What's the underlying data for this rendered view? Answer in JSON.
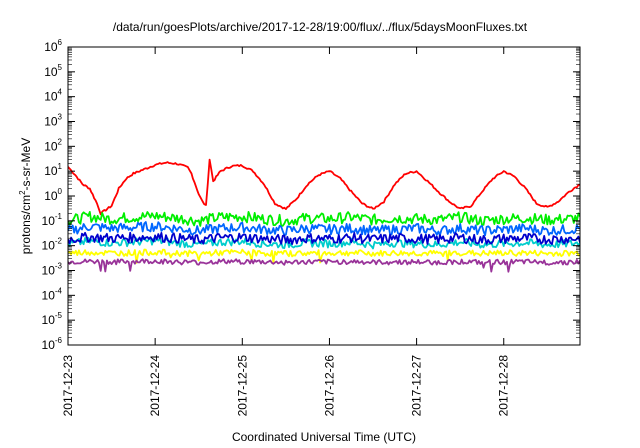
{
  "chart_data": {
    "type": "line",
    "title": "/data/run/goesPlots/archive/2017-12-28/19:00/flux/../flux/5daysMoonFluxes.txt",
    "xlabel": "Coordinated Universal Time (UTC)",
    "ylabel": "protons/cm²-s-sr-MeV",
    "ylabel_parts": {
      "base": "protons/cm",
      "sup": "2",
      "rest": "-s-sr-MeV"
    },
    "xlim": [
      "2017-12-23",
      "2017-12-28 21:00"
    ],
    "x_ticks": [
      "2017-12-23",
      "2017-12-24",
      "2017-12-25",
      "2017-12-26",
      "2017-12-27",
      "2017-12-28"
    ],
    "y_scale": "log",
    "ylim": [
      1e-06,
      1000000.0
    ],
    "y_ticks": [
      {
        "value": 1e-06,
        "base": "10",
        "exp": "-6"
      },
      {
        "value": 1e-05,
        "base": "10",
        "exp": "-5"
      },
      {
        "value": 0.0001,
        "base": "10",
        "exp": "-4"
      },
      {
        "value": 0.001,
        "base": "10",
        "exp": "-3"
      },
      {
        "value": 0.01,
        "base": "10",
        "exp": "-2"
      },
      {
        "value": 0.1,
        "base": "10",
        "exp": "-1"
      },
      {
        "value": 1,
        "base": "10",
        "exp": "0"
      },
      {
        "value": 10,
        "base": "10",
        "exp": "1"
      },
      {
        "value": 100,
        "base": "10",
        "exp": "2"
      },
      {
        "value": 1000,
        "base": "10",
        "exp": "3"
      },
      {
        "value": 10000,
        "base": "10",
        "exp": "4"
      },
      {
        "value": 100000,
        "base": "10",
        "exp": "5"
      },
      {
        "value": 1000000,
        "base": "10",
        "exp": "6"
      }
    ],
    "grid": false,
    "legend": "none",
    "series": [
      {
        "color": "#ff0000",
        "x": [
          "2017-12-23 00:00",
          "2017-12-23 02:00",
          "2017-12-23 04:00",
          "2017-12-23 06:00",
          "2017-12-23 08:00",
          "2017-12-23 09:00",
          "2017-12-23 10:00",
          "2017-12-23 12:00",
          "2017-12-23 14:00",
          "2017-12-23 16:00",
          "2017-12-23 18:00",
          "2017-12-23 21:00",
          "2017-12-24 00:00",
          "2017-12-24 03:00",
          "2017-12-24 06:00",
          "2017-12-24 09:00",
          "2017-12-24 10:00",
          "2017-12-24 12:00",
          "2017-12-24 13:00",
          "2017-12-24 14:00",
          "2017-12-24 15:00",
          "2017-12-24 16:00",
          "2017-12-24 18:00",
          "2017-12-24 21:00",
          "2017-12-25 00:00",
          "2017-12-25 03:00",
          "2017-12-25 06:00",
          "2017-12-25 09:00",
          "2017-12-25 12:00",
          "2017-12-25 15:00",
          "2017-12-25 18:00",
          "2017-12-25 21:00",
          "2017-12-26 00:00",
          "2017-12-26 03:00",
          "2017-12-26 06:00",
          "2017-12-26 09:00",
          "2017-12-26 12:00",
          "2017-12-26 15:00",
          "2017-12-26 18:00",
          "2017-12-26 21:00",
          "2017-12-27 00:00",
          "2017-12-27 03:00",
          "2017-12-27 06:00",
          "2017-12-27 09:00",
          "2017-12-27 12:00",
          "2017-12-27 15:00",
          "2017-12-27 18:00",
          "2017-12-27 21:00",
          "2017-12-28 00:00",
          "2017-12-28 03:00",
          "2017-12-28 06:00",
          "2017-12-28 09:00",
          "2017-12-28 12:00",
          "2017-12-28 15:00",
          "2017-12-28 18:00",
          "2017-12-28 21:00"
        ],
        "y": [
          15,
          7,
          3,
          2,
          0.5,
          0.2,
          0.25,
          0.4,
          2,
          5,
          8,
          12,
          18,
          22,
          20,
          14,
          8,
          1.2,
          0.6,
          0.4,
          30,
          4,
          10,
          16,
          17,
          10,
          3,
          0.5,
          0.3,
          0.8,
          3,
          7,
          10,
          5,
          1.5,
          0.5,
          0.3,
          0.6,
          3,
          8,
          10,
          4,
          1.5,
          0.6,
          0.3,
          0.4,
          1.5,
          5,
          10,
          6,
          2,
          0.5,
          0.35,
          0.6,
          1.5,
          3
        ]
      },
      {
        "color": "#00ee00",
        "x": [
          "2017-12-23 00:00",
          "2017-12-23 06:00",
          "2017-12-23 12:00",
          "2017-12-23 18:00",
          "2017-12-24 00:00",
          "2017-12-24 06:00",
          "2017-12-24 12:00",
          "2017-12-24 18:00",
          "2017-12-25 00:00",
          "2017-12-25 06:00",
          "2017-12-25 12:00",
          "2017-12-25 18:00",
          "2017-12-26 00:00",
          "2017-12-26 06:00",
          "2017-12-26 12:00",
          "2017-12-26 18:00",
          "2017-12-27 00:00",
          "2017-12-27 06:00",
          "2017-12-27 12:00",
          "2017-12-27 18:00",
          "2017-12-28 00:00",
          "2017-12-28 06:00",
          "2017-12-28 12:00",
          "2017-12-28 18:00",
          "2017-12-28 21:00"
        ],
        "y": [
          0.1,
          0.15,
          0.12,
          0.14,
          0.16,
          0.13,
          0.1,
          0.14,
          0.15,
          0.12,
          0.1,
          0.13,
          0.12,
          0.14,
          0.11,
          0.13,
          0.12,
          0.11,
          0.14,
          0.1,
          0.12,
          0.13,
          0.11,
          0.12,
          0.13
        ]
      },
      {
        "color": "#0066ff",
        "x": [
          "2017-12-23 00:00",
          "2017-12-23 06:00",
          "2017-12-23 12:00",
          "2017-12-23 18:00",
          "2017-12-24 00:00",
          "2017-12-24 06:00",
          "2017-12-24 12:00",
          "2017-12-24 18:00",
          "2017-12-25 00:00",
          "2017-12-25 06:00",
          "2017-12-25 12:00",
          "2017-12-25 18:00",
          "2017-12-26 00:00",
          "2017-12-26 06:00",
          "2017-12-26 12:00",
          "2017-12-26 18:00",
          "2017-12-27 00:00",
          "2017-12-27 06:00",
          "2017-12-27 12:00",
          "2017-12-27 18:00",
          "2017-12-28 00:00",
          "2017-12-28 06:00",
          "2017-12-28 12:00",
          "2017-12-28 18:00",
          "2017-12-28 21:00"
        ],
        "y": [
          0.04,
          0.06,
          0.05,
          0.055,
          0.06,
          0.05,
          0.04,
          0.05,
          0.055,
          0.045,
          0.04,
          0.05,
          0.045,
          0.05,
          0.04,
          0.045,
          0.05,
          0.04,
          0.05,
          0.04,
          0.045,
          0.05,
          0.04,
          0.045,
          0.05
        ]
      },
      {
        "color": "#00cccc",
        "x": [
          "2017-12-23 00:00",
          "2017-12-23 06:00",
          "2017-12-23 12:00",
          "2017-12-23 18:00",
          "2017-12-24 00:00",
          "2017-12-24 06:00",
          "2017-12-24 12:00",
          "2017-12-24 18:00",
          "2017-12-25 00:00",
          "2017-12-25 06:00",
          "2017-12-25 12:00",
          "2017-12-25 18:00",
          "2017-12-26 00:00",
          "2017-12-26 06:00",
          "2017-12-26 12:00",
          "2017-12-26 18:00",
          "2017-12-27 00:00",
          "2017-12-27 06:00",
          "2017-12-27 12:00",
          "2017-12-27 18:00",
          "2017-12-28 00:00",
          "2017-12-28 06:00",
          "2017-12-28 12:00",
          "2017-12-28 18:00",
          "2017-12-28 21:00"
        ],
        "y": [
          0.012,
          0.015,
          0.013,
          0.014,
          0.016,
          0.013,
          0.011,
          0.014,
          0.015,
          0.012,
          0.011,
          0.013,
          0.012,
          0.014,
          0.011,
          0.013,
          0.012,
          0.011,
          0.014,
          0.011,
          0.012,
          0.013,
          0.011,
          0.012,
          0.013
        ]
      },
      {
        "color": "#0000cc",
        "x": [
          "2017-12-23 00:00",
          "2017-12-23 06:00",
          "2017-12-23 12:00",
          "2017-12-23 18:00",
          "2017-12-24 00:00",
          "2017-12-24 06:00",
          "2017-12-24 12:00",
          "2017-12-24 18:00",
          "2017-12-25 00:00",
          "2017-12-25 06:00",
          "2017-12-25 12:00",
          "2017-12-25 18:00",
          "2017-12-26 00:00",
          "2017-12-26 06:00",
          "2017-12-26 12:00",
          "2017-12-26 18:00",
          "2017-12-27 00:00",
          "2017-12-27 06:00",
          "2017-12-27 12:00",
          "2017-12-27 18:00",
          "2017-12-28 00:00",
          "2017-12-28 06:00",
          "2017-12-28 12:00",
          "2017-12-28 18:00",
          "2017-12-28 21:00"
        ],
        "y": [
          0.018,
          0.022,
          0.02,
          0.021,
          0.023,
          0.02,
          0.017,
          0.021,
          0.022,
          0.019,
          0.017,
          0.02,
          0.019,
          0.021,
          0.018,
          0.02,
          0.019,
          0.018,
          0.021,
          0.017,
          0.019,
          0.02,
          0.018,
          0.019,
          0.02
        ]
      },
      {
        "color": "#ffff00",
        "x": [
          "2017-12-23 00:00",
          "2017-12-23 06:00",
          "2017-12-23 12:00",
          "2017-12-23 18:00",
          "2017-12-24 00:00",
          "2017-12-24 06:00",
          "2017-12-24 12:00",
          "2017-12-24 18:00",
          "2017-12-25 00:00",
          "2017-12-25 06:00",
          "2017-12-25 12:00",
          "2017-12-25 18:00",
          "2017-12-26 00:00",
          "2017-12-26 06:00",
          "2017-12-26 12:00",
          "2017-12-26 18:00",
          "2017-12-27 00:00",
          "2017-12-27 06:00",
          "2017-12-27 12:00",
          "2017-12-27 18:00",
          "2017-12-28 00:00",
          "2017-12-28 06:00",
          "2017-12-28 12:00",
          "2017-12-28 18:00",
          "2017-12-28 21:00"
        ],
        "y": [
          0.005,
          0.0055,
          0.005,
          0.0052,
          0.0055,
          0.005,
          0.0048,
          0.0052,
          0.0054,
          0.005,
          0.0048,
          0.005,
          0.005,
          0.0052,
          0.0048,
          0.005,
          0.005,
          0.0048,
          0.0052,
          0.0048,
          0.005,
          0.0051,
          0.0048,
          0.005,
          0.0051
        ]
      },
      {
        "color": "#993399",
        "x": [
          "2017-12-23 00:00",
          "2017-12-23 06:00",
          "2017-12-23 12:00",
          "2017-12-23 18:00",
          "2017-12-24 00:00",
          "2017-12-24 06:00",
          "2017-12-24 12:00",
          "2017-12-24 18:00",
          "2017-12-25 00:00",
          "2017-12-25 06:00",
          "2017-12-25 12:00",
          "2017-12-25 18:00",
          "2017-12-26 00:00",
          "2017-12-26 06:00",
          "2017-12-26 12:00",
          "2017-12-26 18:00",
          "2017-12-27 00:00",
          "2017-12-27 06:00",
          "2017-12-27 12:00",
          "2017-12-27 18:00",
          "2017-12-28 00:00",
          "2017-12-28 06:00",
          "2017-12-28 12:00",
          "2017-12-28 18:00",
          "2017-12-28 21:00"
        ],
        "y": [
          0.0022,
          0.0023,
          0.0022,
          0.0023,
          0.0024,
          0.0022,
          0.0021,
          0.0023,
          0.0023,
          0.0022,
          0.0021,
          0.0022,
          0.0022,
          0.0023,
          0.0021,
          0.0022,
          0.0022,
          0.0021,
          0.0023,
          0.0021,
          0.0022,
          0.0022,
          0.0021,
          0.0022,
          0.0022
        ]
      }
    ]
  }
}
